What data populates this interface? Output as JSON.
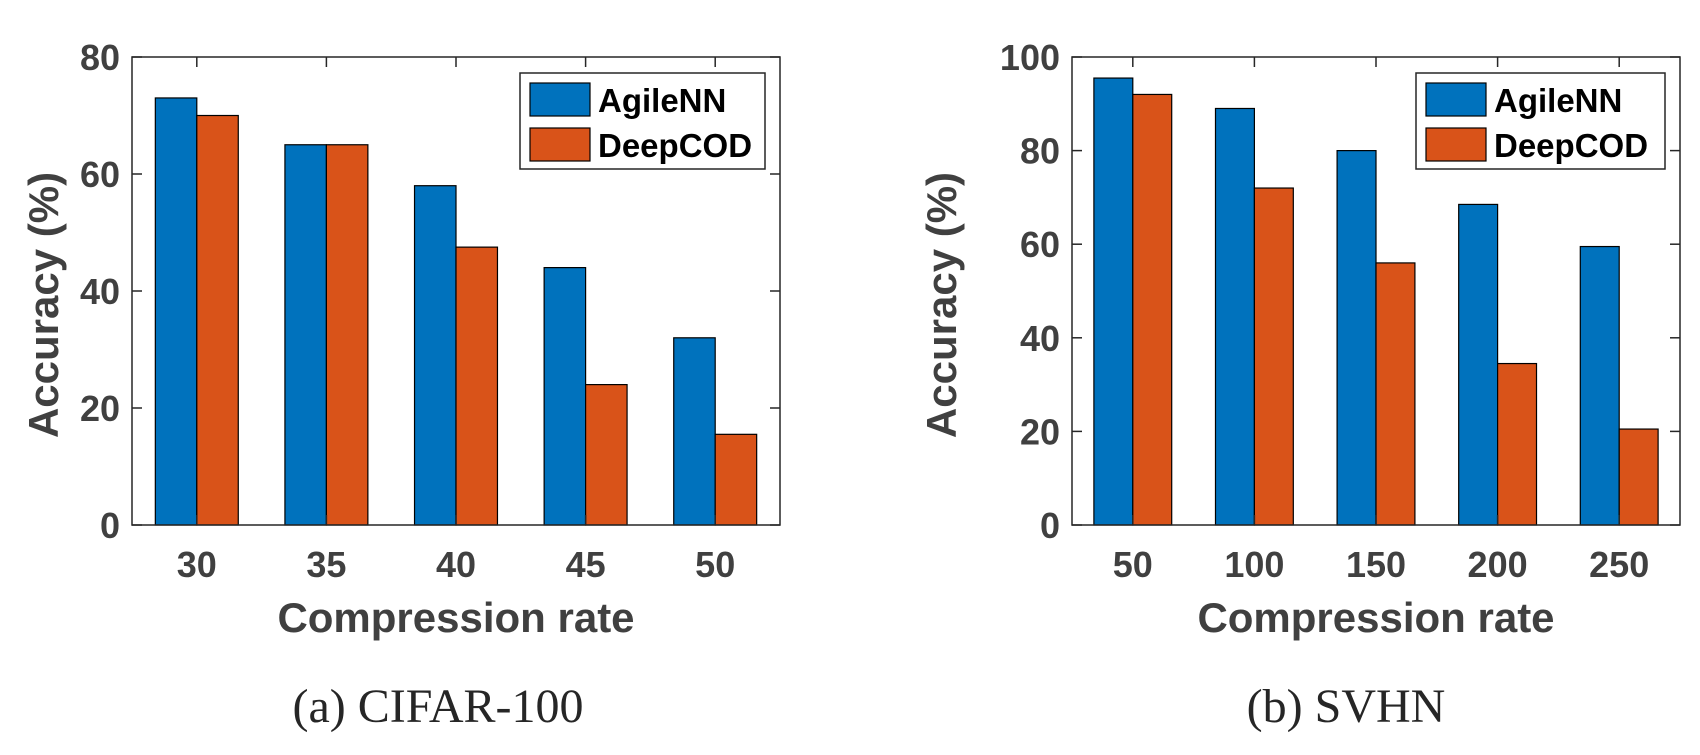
{
  "chart_data": [
    {
      "type": "bar",
      "caption": "(a)  CIFAR-100",
      "categories": [
        "30",
        "35",
        "40",
        "45",
        "50"
      ],
      "series": [
        {
          "name": "AgileNN",
          "values": [
            73,
            65,
            58,
            44,
            32
          ],
          "color": "#0072BD"
        },
        {
          "name": "DeepCOD",
          "values": [
            70,
            65,
            47.5,
            24,
            15.5
          ],
          "color": "#D95319"
        }
      ],
      "xlabel": "Compression rate",
      "ylabel": "Accuracy (%)",
      "ylim": [
        0,
        80
      ],
      "yticks": [
        "0",
        "20",
        "40",
        "60",
        "80"
      ],
      "legend": "top-right",
      "grid": false
    },
    {
      "type": "bar",
      "caption": "(b)  SVHN",
      "categories": [
        "50",
        "100",
        "150",
        "200",
        "250"
      ],
      "series": [
        {
          "name": "AgileNN",
          "values": [
            95.5,
            89,
            80,
            68.5,
            59.5
          ],
          "color": "#0072BD"
        },
        {
          "name": "DeepCOD",
          "values": [
            92,
            72,
            56,
            34.5,
            20.5
          ],
          "color": "#D95319"
        }
      ],
      "xlabel": "Compression rate",
      "ylabel": "Accuracy (%)",
      "ylim": [
        0,
        100
      ],
      "yticks": [
        "0",
        "20",
        "40",
        "60",
        "80",
        "100"
      ],
      "legend": "top-right",
      "grid": false
    }
  ]
}
